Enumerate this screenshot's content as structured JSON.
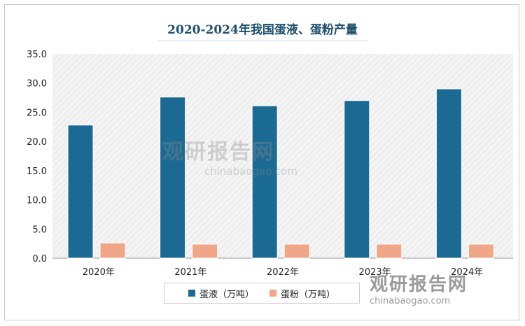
{
  "chart_data": {
    "type": "bar",
    "title": "2020-2024年我国蛋液、蛋粉产量",
    "categories": [
      "2020年",
      "2021年",
      "2022年",
      "2023年",
      "2024年"
    ],
    "series": [
      {
        "name": "蛋液（万吨）",
        "color": "#1b6a93",
        "values": [
          22.8,
          27.6,
          26.1,
          27.0,
          29.0
        ]
      },
      {
        "name": "蛋粉（万吨）",
        "color": "#f0a688",
        "values": [
          2.6,
          2.4,
          2.4,
          2.4,
          2.4
        ]
      }
    ],
    "ylim": [
      0,
      35
    ],
    "yticks": [
      "0.0",
      "5.0",
      "10.0",
      "15.0",
      "20.0",
      "25.0",
      "30.0",
      "35.0"
    ],
    "grid": false,
    "legend": "bottom"
  },
  "watermark": {
    "brand": "观研报告网",
    "site": "chinabaogao.com"
  }
}
